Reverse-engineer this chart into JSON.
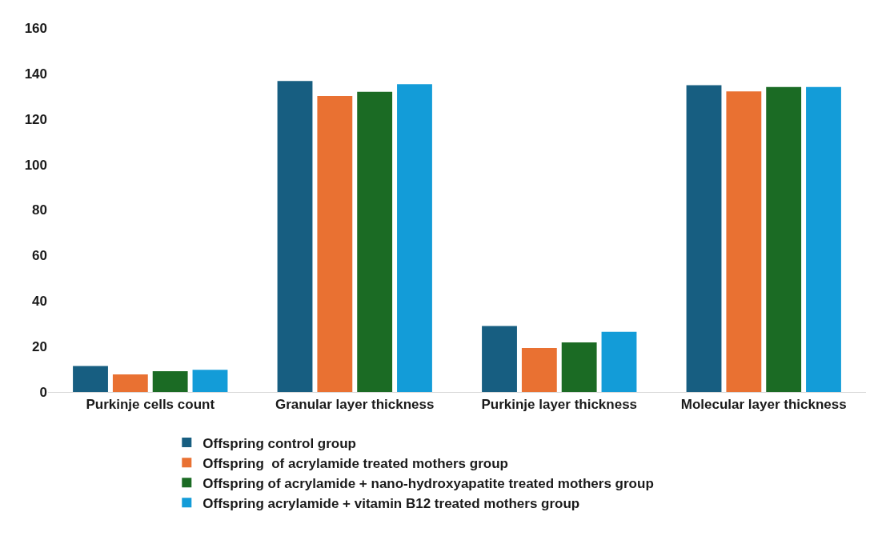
{
  "chart_data": {
    "type": "bar",
    "categories": [
      "Purkinje cells count",
      "Granular layer thickness",
      "Purkinje layer thickness",
      "Molecular layer thickness"
    ],
    "series": [
      {
        "name": "Offspring control group",
        "color": "#175e81",
        "values": [
          11.4,
          136.7,
          29.0,
          134.9
        ]
      },
      {
        "name": "Offspring  of acrylamide treated mothers group",
        "color": "#e97132",
        "values": [
          7.7,
          130.1,
          19.3,
          132.1
        ]
      },
      {
        "name": "Offspring of acrylamide + nano-hydroxyapatite treated mothers group",
        "color": "#1b6b24",
        "values": [
          9.1,
          132.0,
          21.8,
          134.1
        ]
      },
      {
        "name": "Offspring acrylamide + vitamin B12 treated mothers group",
        "color": "#139cd8",
        "values": [
          9.8,
          135.3,
          26.5,
          134.1
        ]
      }
    ],
    "ylim": [
      0,
      160
    ],
    "yticks": [
      0,
      20,
      40,
      60,
      80,
      100,
      120,
      140,
      160
    ],
    "grid": false,
    "legend": "bottom"
  }
}
